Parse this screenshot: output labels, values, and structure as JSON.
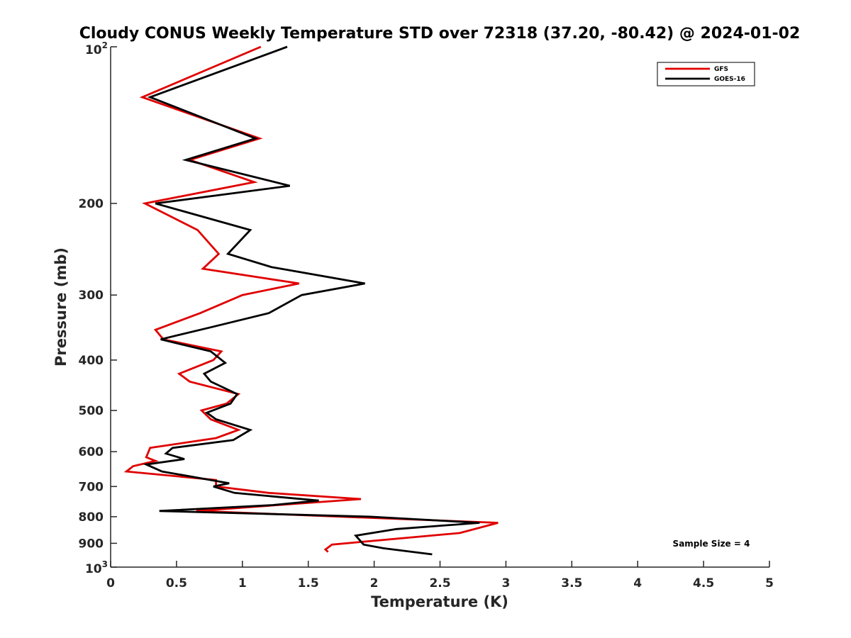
{
  "chart_data": {
    "type": "line",
    "title": "Cloudy CONUS Weekly Temperature STD over 72318 (37.20, -80.42) @ 2024-01-02",
    "xlabel": "Temperature (K)",
    "ylabel": "Pressure (mb)",
    "xlim": [
      0,
      5
    ],
    "ylim": [
      100,
      1000
    ],
    "y_scale": "log",
    "y_direction": "reverse",
    "x_ticks": [
      {
        "value": 0,
        "label": "0"
      },
      {
        "value": 0.5,
        "label": "0.5"
      },
      {
        "value": 1,
        "label": "1"
      },
      {
        "value": 1.5,
        "label": "1.5"
      },
      {
        "value": 2,
        "label": "2"
      },
      {
        "value": 2.5,
        "label": "2.5"
      },
      {
        "value": 3,
        "label": "3"
      },
      {
        "value": 3.5,
        "label": "3.5"
      },
      {
        "value": 4,
        "label": "4"
      },
      {
        "value": 4.5,
        "label": "4.5"
      },
      {
        "value": 5,
        "label": "5"
      }
    ],
    "y_ticks": [
      {
        "value": 100,
        "label": "10",
        "exponent": "2"
      },
      {
        "value": 200,
        "label": "200"
      },
      {
        "value": 300,
        "label": "300"
      },
      {
        "value": 400,
        "label": "400"
      },
      {
        "value": 500,
        "label": "500"
      },
      {
        "value": 600,
        "label": "600"
      },
      {
        "value": 700,
        "label": "700"
      },
      {
        "value": 800,
        "label": "800"
      },
      {
        "value": 900,
        "label": "900"
      },
      {
        "value": 1000,
        "label": "10",
        "exponent": "3"
      }
    ],
    "grid": false,
    "legend_position": "top-right",
    "annotation": "Sample Size = 4",
    "series": [
      {
        "name": "GFS",
        "color": "#e00000",
        "points": [
          {
            "x": 1.14,
            "p": 100
          },
          {
            "x": 0.24,
            "p": 125
          },
          {
            "x": 1.13,
            "p": 150
          },
          {
            "x": 0.6,
            "p": 165
          },
          {
            "x": 1.09,
            "p": 182
          },
          {
            "x": 0.26,
            "p": 200
          },
          {
            "x": 0.66,
            "p": 225
          },
          {
            "x": 0.82,
            "p": 250
          },
          {
            "x": 0.7,
            "p": 267
          },
          {
            "x": 1.43,
            "p": 285
          },
          {
            "x": 1.0,
            "p": 300
          },
          {
            "x": 0.68,
            "p": 325
          },
          {
            "x": 0.34,
            "p": 350
          },
          {
            "x": 0.4,
            "p": 365
          },
          {
            "x": 0.84,
            "p": 385
          },
          {
            "x": 0.78,
            "p": 400
          },
          {
            "x": 0.52,
            "p": 425
          },
          {
            "x": 0.6,
            "p": 440
          },
          {
            "x": 0.97,
            "p": 465
          },
          {
            "x": 0.88,
            "p": 485
          },
          {
            "x": 0.69,
            "p": 500
          },
          {
            "x": 0.76,
            "p": 520
          },
          {
            "x": 0.97,
            "p": 545
          },
          {
            "x": 0.8,
            "p": 565
          },
          {
            "x": 0.3,
            "p": 590
          },
          {
            "x": 0.27,
            "p": 615
          },
          {
            "x": 0.34,
            "p": 625
          },
          {
            "x": 0.17,
            "p": 640
          },
          {
            "x": 0.12,
            "p": 655
          },
          {
            "x": 0.8,
            "p": 680
          },
          {
            "x": 0.8,
            "p": 700
          },
          {
            "x": 1.2,
            "p": 720
          },
          {
            "x": 1.9,
            "p": 740
          },
          {
            "x": 0.65,
            "p": 780
          },
          {
            "x": 2.94,
            "p": 822
          },
          {
            "x": 2.65,
            "p": 860
          },
          {
            "x": 1.68,
            "p": 905
          },
          {
            "x": 1.63,
            "p": 925
          },
          {
            "x": 1.65,
            "p": 935
          }
        ]
      },
      {
        "name": "GOES-16",
        "color": "#000000",
        "points": [
          {
            "x": 1.34,
            "p": 100
          },
          {
            "x": 0.3,
            "p": 125
          },
          {
            "x": 1.1,
            "p": 150
          },
          {
            "x": 0.57,
            "p": 165
          },
          {
            "x": 1.36,
            "p": 185
          },
          {
            "x": 0.34,
            "p": 200
          },
          {
            "x": 1.06,
            "p": 225
          },
          {
            "x": 0.89,
            "p": 250
          },
          {
            "x": 1.22,
            "p": 265
          },
          {
            "x": 1.93,
            "p": 285
          },
          {
            "x": 1.45,
            "p": 300
          },
          {
            "x": 1.2,
            "p": 325
          },
          {
            "x": 0.78,
            "p": 345
          },
          {
            "x": 0.38,
            "p": 365
          },
          {
            "x": 0.76,
            "p": 385
          },
          {
            "x": 0.87,
            "p": 405
          },
          {
            "x": 0.71,
            "p": 425
          },
          {
            "x": 0.76,
            "p": 440
          },
          {
            "x": 0.96,
            "p": 465
          },
          {
            "x": 0.91,
            "p": 485
          },
          {
            "x": 0.73,
            "p": 505
          },
          {
            "x": 0.8,
            "p": 520
          },
          {
            "x": 1.06,
            "p": 545
          },
          {
            "x": 0.93,
            "p": 570
          },
          {
            "x": 0.47,
            "p": 590
          },
          {
            "x": 0.42,
            "p": 605
          },
          {
            "x": 0.56,
            "p": 620
          },
          {
            "x": 0.27,
            "p": 635
          },
          {
            "x": 0.39,
            "p": 655
          },
          {
            "x": 0.9,
            "p": 690
          },
          {
            "x": 0.78,
            "p": 700
          },
          {
            "x": 0.94,
            "p": 720
          },
          {
            "x": 1.58,
            "p": 745
          },
          {
            "x": 1.23,
            "p": 760
          },
          {
            "x": 0.37,
            "p": 780
          },
          {
            "x": 1.97,
            "p": 800
          },
          {
            "x": 2.8,
            "p": 822
          },
          {
            "x": 2.17,
            "p": 845
          },
          {
            "x": 1.86,
            "p": 870
          },
          {
            "x": 1.92,
            "p": 905
          },
          {
            "x": 2.07,
            "p": 920
          },
          {
            "x": 2.44,
            "p": 945
          }
        ]
      }
    ]
  }
}
